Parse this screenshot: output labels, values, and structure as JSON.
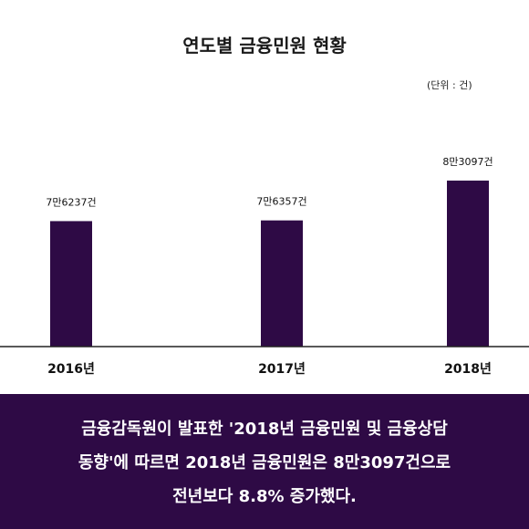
{
  "chart_data": {
    "type": "bar",
    "title": "연도별 금융민원 현황",
    "unit_label": "(단위 : 건)",
    "categories": [
      "2016년",
      "2017년",
      "2018년"
    ],
    "values": [
      76237,
      76357,
      83097
    ],
    "data_labels": [
      "7만6237건",
      "7만6357건",
      "8만3097건"
    ],
    "bar_color": "#2e0a45",
    "grid": false,
    "legend": "none"
  },
  "caption": {
    "lines": [
      "금융감독원이 발표한 '2018년 금융민원 및 금융상담",
      "동향'에 따르면 2018년 금융민원은 8만3097건으로",
      "전년보다 8.8% 증가했다."
    ],
    "background": "#2e0a45"
  }
}
